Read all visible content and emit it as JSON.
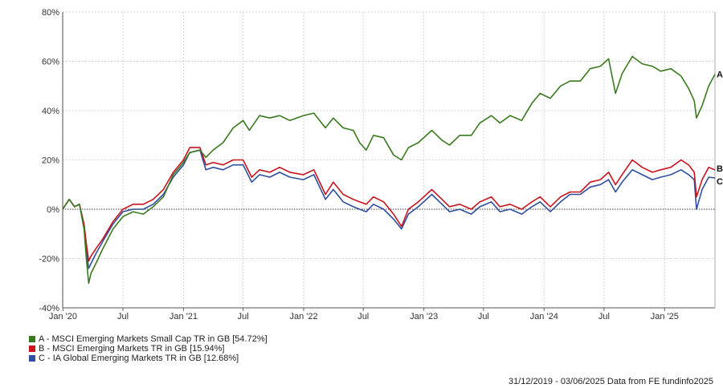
{
  "chart_data": {
    "type": "line",
    "title": "",
    "xlabel": "",
    "ylabel": "",
    "x_domain": [
      "2019-12-31",
      "2025-06-03"
    ],
    "ylim": [
      -40,
      80
    ],
    "y_ticks": [
      80,
      60,
      40,
      20,
      0,
      -20,
      -40
    ],
    "y_tick_labels": [
      "80%",
      "60%",
      "40%",
      "20%",
      "0%",
      "-20%",
      "-40%"
    ],
    "x_ticks": [
      {
        "date": "2020-01-01",
        "label": "Jan '20"
      },
      {
        "date": "2020-07-01",
        "label": "Jul"
      },
      {
        "date": "2021-01-01",
        "label": "Jan '21"
      },
      {
        "date": "2021-07-01",
        "label": "Jul"
      },
      {
        "date": "2022-01-01",
        "label": "Jan '22"
      },
      {
        "date": "2022-07-01",
        "label": "Jul"
      },
      {
        "date": "2023-01-01",
        "label": "Jan '23"
      },
      {
        "date": "2023-07-01",
        "label": "Jul"
      },
      {
        "date": "2024-01-01",
        "label": "Jan '24"
      },
      {
        "date": "2024-07-01",
        "label": "Jul"
      },
      {
        "date": "2025-01-01",
        "label": "Jan '25"
      }
    ],
    "grid": true,
    "legend_position": "bottom-left",
    "series": [
      {
        "name": "A - MSCI Emerging Markets Small Cap TR in GB [54.72%]",
        "end_label": "A",
        "color": "#3a7a1e",
        "points": [
          [
            "2019-12-31",
            0
          ],
          [
            "2020-01-10",
            2
          ],
          [
            "2020-01-20",
            4
          ],
          [
            "2020-02-05",
            1
          ],
          [
            "2020-02-20",
            2
          ],
          [
            "2020-03-05",
            -8
          ],
          [
            "2020-03-12",
            -20
          ],
          [
            "2020-03-19",
            -30
          ],
          [
            "2020-03-26",
            -26
          ],
          [
            "2020-04-10",
            -22
          ],
          [
            "2020-05-01",
            -16
          ],
          [
            "2020-06-01",
            -8
          ],
          [
            "2020-07-01",
            -3
          ],
          [
            "2020-08-01",
            -1
          ],
          [
            "2020-09-01",
            -2
          ],
          [
            "2020-10-01",
            1
          ],
          [
            "2020-11-01",
            5
          ],
          [
            "2020-12-01",
            14
          ],
          [
            "2021-01-01",
            19
          ],
          [
            "2021-01-20",
            23
          ],
          [
            "2021-02-20",
            24
          ],
          [
            "2021-03-10",
            21
          ],
          [
            "2021-04-01",
            24
          ],
          [
            "2021-05-01",
            27
          ],
          [
            "2021-06-01",
            33
          ],
          [
            "2021-07-01",
            36
          ],
          [
            "2021-07-20",
            32
          ],
          [
            "2021-08-20",
            38
          ],
          [
            "2021-09-20",
            37
          ],
          [
            "2021-10-20",
            38
          ],
          [
            "2021-11-20",
            36
          ],
          [
            "2021-12-31",
            38
          ],
          [
            "2022-02-01",
            39
          ],
          [
            "2022-03-08",
            33
          ],
          [
            "2022-04-01",
            37
          ],
          [
            "2022-05-01",
            33
          ],
          [
            "2022-06-01",
            32
          ],
          [
            "2022-06-20",
            27
          ],
          [
            "2022-07-10",
            24
          ],
          [
            "2022-08-01",
            30
          ],
          [
            "2022-09-01",
            29
          ],
          [
            "2022-10-01",
            22
          ],
          [
            "2022-10-25",
            20
          ],
          [
            "2022-11-15",
            25
          ],
          [
            "2022-12-15",
            27
          ],
          [
            "2023-01-25",
            32
          ],
          [
            "2023-02-25",
            28
          ],
          [
            "2023-03-20",
            26
          ],
          [
            "2023-04-20",
            30
          ],
          [
            "2023-05-25",
            30
          ],
          [
            "2023-06-20",
            35
          ],
          [
            "2023-07-25",
            38
          ],
          [
            "2023-08-20",
            35
          ],
          [
            "2023-09-20",
            38
          ],
          [
            "2023-10-25",
            36
          ],
          [
            "2023-11-25",
            43
          ],
          [
            "2023-12-20",
            47
          ],
          [
            "2024-01-20",
            45
          ],
          [
            "2024-02-20",
            50
          ],
          [
            "2024-03-20",
            52
          ],
          [
            "2024-04-20",
            52
          ],
          [
            "2024-05-20",
            57
          ],
          [
            "2024-06-20",
            58
          ],
          [
            "2024-07-15",
            61
          ],
          [
            "2024-08-05",
            47
          ],
          [
            "2024-08-25",
            55
          ],
          [
            "2024-09-25",
            62
          ],
          [
            "2024-10-25",
            59
          ],
          [
            "2024-11-25",
            58
          ],
          [
            "2024-12-20",
            56
          ],
          [
            "2025-01-20",
            57
          ],
          [
            "2025-02-20",
            54
          ],
          [
            "2025-03-15",
            49
          ],
          [
            "2025-04-01",
            44
          ],
          [
            "2025-04-08",
            37
          ],
          [
            "2025-04-25",
            42
          ],
          [
            "2025-05-15",
            50
          ],
          [
            "2025-06-03",
            54.72
          ]
        ]
      },
      {
        "name": "B - MSCI Emerging Markets TR in GB [15.94%]",
        "end_label": "B",
        "color": "#c8141e",
        "points": [
          [
            "2019-12-31",
            0
          ],
          [
            "2020-01-10",
            2
          ],
          [
            "2020-01-20",
            4
          ],
          [
            "2020-02-05",
            1
          ],
          [
            "2020-02-20",
            2
          ],
          [
            "2020-03-05",
            -6
          ],
          [
            "2020-03-12",
            -14
          ],
          [
            "2020-03-19",
            -21
          ],
          [
            "2020-03-26",
            -19
          ],
          [
            "2020-04-10",
            -16
          ],
          [
            "2020-05-01",
            -12
          ],
          [
            "2020-06-01",
            -5
          ],
          [
            "2020-07-01",
            0
          ],
          [
            "2020-08-01",
            2
          ],
          [
            "2020-09-01",
            2
          ],
          [
            "2020-10-01",
            4
          ],
          [
            "2020-11-01",
            8
          ],
          [
            "2020-12-01",
            15
          ],
          [
            "2021-01-01",
            20
          ],
          [
            "2021-01-20",
            25
          ],
          [
            "2021-02-20",
            25
          ],
          [
            "2021-03-10",
            18
          ],
          [
            "2021-04-01",
            19
          ],
          [
            "2021-05-01",
            18
          ],
          [
            "2021-06-01",
            20
          ],
          [
            "2021-07-01",
            20
          ],
          [
            "2021-07-27",
            13
          ],
          [
            "2021-08-20",
            16
          ],
          [
            "2021-09-20",
            15
          ],
          [
            "2021-10-20",
            17
          ],
          [
            "2021-11-20",
            15
          ],
          [
            "2021-12-31",
            14
          ],
          [
            "2022-02-01",
            16
          ],
          [
            "2022-03-08",
            6
          ],
          [
            "2022-04-01",
            11
          ],
          [
            "2022-05-01",
            6
          ],
          [
            "2022-06-01",
            4
          ],
          [
            "2022-06-20",
            3
          ],
          [
            "2022-07-10",
            2
          ],
          [
            "2022-08-01",
            5
          ],
          [
            "2022-09-01",
            3
          ],
          [
            "2022-10-01",
            -2
          ],
          [
            "2022-10-25",
            -7
          ],
          [
            "2022-11-15",
            0
          ],
          [
            "2022-12-15",
            3
          ],
          [
            "2023-01-25",
            8
          ],
          [
            "2023-02-25",
            4
          ],
          [
            "2023-03-20",
            1
          ],
          [
            "2023-04-20",
            2
          ],
          [
            "2023-05-25",
            0
          ],
          [
            "2023-06-20",
            3
          ],
          [
            "2023-07-25",
            5
          ],
          [
            "2023-08-20",
            1
          ],
          [
            "2023-09-20",
            2
          ],
          [
            "2023-10-25",
            0
          ],
          [
            "2023-11-25",
            3
          ],
          [
            "2023-12-20",
            5
          ],
          [
            "2024-01-20",
            1
          ],
          [
            "2024-02-20",
            5
          ],
          [
            "2024-03-20",
            7
          ],
          [
            "2024-04-20",
            7
          ],
          [
            "2024-05-20",
            11
          ],
          [
            "2024-06-20",
            12
          ],
          [
            "2024-07-15",
            15
          ],
          [
            "2024-08-05",
            10
          ],
          [
            "2024-08-25",
            14
          ],
          [
            "2024-09-25",
            20
          ],
          [
            "2024-10-25",
            17
          ],
          [
            "2024-11-25",
            15
          ],
          [
            "2024-12-20",
            16
          ],
          [
            "2025-01-20",
            17
          ],
          [
            "2025-02-20",
            20
          ],
          [
            "2025-03-15",
            18
          ],
          [
            "2025-04-01",
            15
          ],
          [
            "2025-04-08",
            5
          ],
          [
            "2025-04-25",
            12
          ],
          [
            "2025-05-15",
            17
          ],
          [
            "2025-06-03",
            15.94
          ]
        ]
      },
      {
        "name": "C - IA Global Emerging Markets TR in GB [12.68%]",
        "end_label": "C",
        "color": "#2e4f9e",
        "points": [
          [
            "2019-12-31",
            0
          ],
          [
            "2020-01-10",
            2
          ],
          [
            "2020-01-20",
            4
          ],
          [
            "2020-02-05",
            1
          ],
          [
            "2020-02-20",
            2
          ],
          [
            "2020-03-05",
            -7
          ],
          [
            "2020-03-12",
            -17
          ],
          [
            "2020-03-19",
            -24
          ],
          [
            "2020-03-26",
            -22
          ],
          [
            "2020-04-10",
            -18
          ],
          [
            "2020-05-01",
            -13
          ],
          [
            "2020-06-01",
            -6
          ],
          [
            "2020-07-01",
            -1
          ],
          [
            "2020-08-01",
            0
          ],
          [
            "2020-09-01",
            0
          ],
          [
            "2020-10-01",
            2
          ],
          [
            "2020-11-01",
            6
          ],
          [
            "2020-12-01",
            13
          ],
          [
            "2021-01-01",
            18
          ],
          [
            "2021-01-20",
            23
          ],
          [
            "2021-02-20",
            24
          ],
          [
            "2021-03-10",
            16
          ],
          [
            "2021-04-01",
            17
          ],
          [
            "2021-05-01",
            16
          ],
          [
            "2021-06-01",
            18
          ],
          [
            "2021-07-01",
            18
          ],
          [
            "2021-07-27",
            11
          ],
          [
            "2021-08-20",
            14
          ],
          [
            "2021-09-20",
            13
          ],
          [
            "2021-10-20",
            15
          ],
          [
            "2021-11-20",
            13
          ],
          [
            "2021-12-31",
            12
          ],
          [
            "2022-02-01",
            14
          ],
          [
            "2022-03-08",
            4
          ],
          [
            "2022-04-01",
            8
          ],
          [
            "2022-05-01",
            3
          ],
          [
            "2022-06-01",
            1
          ],
          [
            "2022-06-20",
            0
          ],
          [
            "2022-07-10",
            -1
          ],
          [
            "2022-08-01",
            2
          ],
          [
            "2022-09-01",
            0
          ],
          [
            "2022-10-01",
            -4
          ],
          [
            "2022-10-25",
            -8
          ],
          [
            "2022-11-15",
            -2
          ],
          [
            "2022-12-15",
            1
          ],
          [
            "2023-01-25",
            6
          ],
          [
            "2023-02-25",
            2
          ],
          [
            "2023-03-20",
            -1
          ],
          [
            "2023-04-20",
            0
          ],
          [
            "2023-05-25",
            -2
          ],
          [
            "2023-06-20",
            1
          ],
          [
            "2023-07-25",
            3
          ],
          [
            "2023-08-20",
            -1
          ],
          [
            "2023-09-20",
            0
          ],
          [
            "2023-10-25",
            -2
          ],
          [
            "2023-11-25",
            1
          ],
          [
            "2023-12-20",
            3
          ],
          [
            "2024-01-20",
            -1
          ],
          [
            "2024-02-20",
            3
          ],
          [
            "2024-03-20",
            6
          ],
          [
            "2024-04-20",
            6
          ],
          [
            "2024-05-20",
            9
          ],
          [
            "2024-06-20",
            10
          ],
          [
            "2024-07-15",
            12
          ],
          [
            "2024-08-05",
            7
          ],
          [
            "2024-08-25",
            11
          ],
          [
            "2024-09-25",
            16
          ],
          [
            "2024-10-25",
            14
          ],
          [
            "2024-11-25",
            12
          ],
          [
            "2024-12-20",
            13
          ],
          [
            "2025-01-20",
            14
          ],
          [
            "2025-02-20",
            16
          ],
          [
            "2025-03-15",
            14
          ],
          [
            "2025-04-01",
            12
          ],
          [
            "2025-04-08",
            0
          ],
          [
            "2025-04-25",
            8
          ],
          [
            "2025-05-15",
            13
          ],
          [
            "2025-06-03",
            12.68
          ]
        ]
      }
    ]
  },
  "footer": {
    "text": "31/12/2019 - 03/06/2025 Data from FE fundinfo2025"
  }
}
